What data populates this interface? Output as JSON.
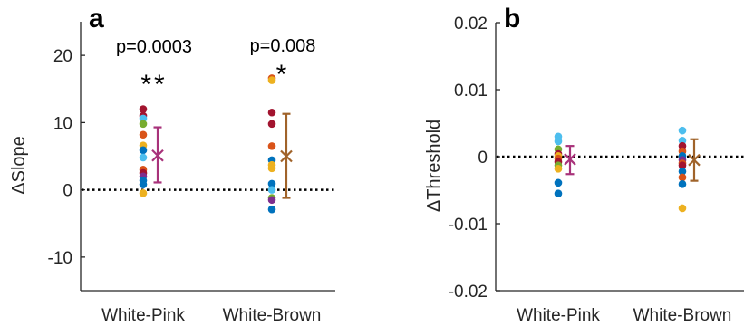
{
  "chart_data": [
    {
      "type": "scatter",
      "panel_label": "a",
      "ylabel": "ΔSlope",
      "ylim": [
        -15,
        25
      ],
      "yticks": [
        -10,
        0,
        10,
        20
      ],
      "yticklabels": [
        "-10",
        "0",
        "10",
        "20"
      ],
      "categories": [
        "White-Pink",
        "White-Brown"
      ],
      "reference_line": 0,
      "groups": [
        {
          "category": "White-Pink",
          "p_text": "p=0.0003",
          "stars": "**",
          "points": [
            {
              "y": 12.0,
              "color": "#A2142F"
            },
            {
              "y": 11.0,
              "color": "#A2142F"
            },
            {
              "y": 10.6,
              "color": "#4DBEEE"
            },
            {
              "y": 9.8,
              "color": "#77AC30"
            },
            {
              "y": 8.2,
              "color": "#D95319"
            },
            {
              "y": 6.6,
              "color": "#EDB120"
            },
            {
              "y": 5.9,
              "color": "#0072BD"
            },
            {
              "y": 4.8,
              "color": "#4DBEEE"
            },
            {
              "y": 3.0,
              "color": "#D95319"
            },
            {
              "y": 2.5,
              "color": "#A2142F"
            },
            {
              "y": 2.0,
              "color": "#7E2F8E"
            },
            {
              "y": 1.4,
              "color": "#0072BD"
            },
            {
              "y": 0.8,
              "color": "#0072BD"
            },
            {
              "y": -0.5,
              "color": "#EDB120"
            }
          ],
          "mean": 5.1,
          "err_low": 1.1,
          "err_high": 9.3,
          "summary_color": "#A8327A"
        },
        {
          "category": "White-Brown",
          "p_text": "p=0.008",
          "stars": "*",
          "points": [
            {
              "y": 16.6,
              "color": "#D95319"
            },
            {
              "y": 16.3,
              "color": "#EDB120"
            },
            {
              "y": 11.5,
              "color": "#A2142F"
            },
            {
              "y": 9.8,
              "color": "#A2142F"
            },
            {
              "y": 6.5,
              "color": "#D95319"
            },
            {
              "y": 4.4,
              "color": "#0072BD"
            },
            {
              "y": 3.7,
              "color": "#EDB120"
            },
            {
              "y": 3.2,
              "color": "#EDB120"
            },
            {
              "y": 0.9,
              "color": "#0072BD"
            },
            {
              "y": 0.0,
              "color": "#4DBEEE"
            },
            {
              "y": -1.2,
              "color": "#77AC30"
            },
            {
              "y": -1.5,
              "color": "#7E2F8E"
            },
            {
              "y": -2.9,
              "color": "#0072BD"
            }
          ],
          "mean": 5.0,
          "err_low": -1.2,
          "err_high": 11.3,
          "summary_color": "#A0632A"
        }
      ]
    },
    {
      "type": "scatter",
      "panel_label": "b",
      "ylabel": "ΔThreshold",
      "ylim": [
        -0.02,
        0.02
      ],
      "yticks": [
        -0.02,
        -0.01,
        0,
        0.01,
        0.02
      ],
      "yticklabels": [
        "-0.02",
        "-0.01",
        "0",
        "0.01",
        "0.02"
      ],
      "categories": [
        "White-Pink",
        "White-Brown"
      ],
      "reference_line": 0,
      "groups": [
        {
          "category": "White-Pink",
          "points": [
            {
              "y": 0.003,
              "color": "#4DBEEE"
            },
            {
              "y": 0.0023,
              "color": "#4DBEEE"
            },
            {
              "y": 0.0011,
              "color": "#77AC30"
            },
            {
              "y": 0.0004,
              "color": "#A2142F"
            },
            {
              "y": 0.0001,
              "color": "#EDB120"
            },
            {
              "y": -0.0003,
              "color": "#D95319"
            },
            {
              "y": -0.0008,
              "color": "#A2142F"
            },
            {
              "y": -0.0013,
              "color": "#77AC30"
            },
            {
              "y": -0.0018,
              "color": "#EDB120"
            },
            {
              "y": -0.0039,
              "color": "#0072BD"
            },
            {
              "y": -0.0055,
              "color": "#0072BD"
            }
          ],
          "mean": -0.0004,
          "err_low": -0.0026,
          "err_high": 0.0016,
          "summary_color": "#A8327A"
        },
        {
          "category": "White-Brown",
          "points": [
            {
              "y": 0.0039,
              "color": "#4DBEEE"
            },
            {
              "y": 0.0024,
              "color": "#4DBEEE"
            },
            {
              "y": 0.0016,
              "color": "#A2142F"
            },
            {
              "y": 0.0008,
              "color": "#D95319"
            },
            {
              "y": 0.0001,
              "color": "#0072BD"
            },
            {
              "y": -0.0005,
              "color": "#7E2F8E"
            },
            {
              "y": -0.001,
              "color": "#D95319"
            },
            {
              "y": -0.0013,
              "color": "#A2142F"
            },
            {
              "y": -0.0022,
              "color": "#0072BD"
            },
            {
              "y": -0.0031,
              "color": "#D95319"
            },
            {
              "y": -0.0041,
              "color": "#0072BD"
            },
            {
              "y": -0.0077,
              "color": "#EDB120"
            }
          ],
          "mean": -0.0005,
          "err_low": -0.0036,
          "err_high": 0.0026,
          "summary_color": "#A0632A"
        }
      ]
    }
  ]
}
